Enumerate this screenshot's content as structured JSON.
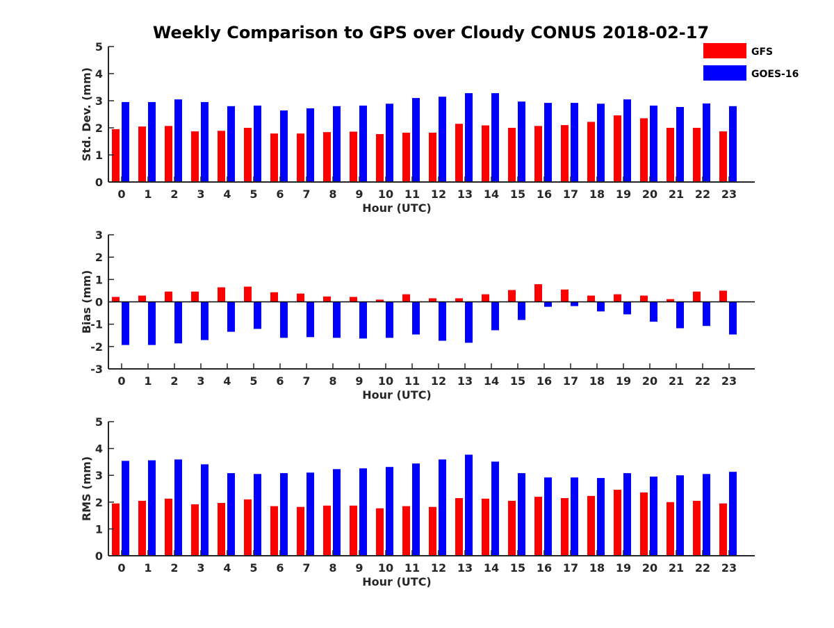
{
  "figure": {
    "title": "Weekly Comparison to GPS over Cloudy CONUS 2018-02-17"
  },
  "legend": {
    "placement": "top-right",
    "entries": [
      {
        "label": "GFS",
        "color": "#ff0000"
      },
      {
        "label": "GOES-16",
        "color": "#0000ff"
      }
    ]
  },
  "chart_data": [
    {
      "type": "bar",
      "title": "",
      "xlabel": "Hour (UTC)",
      "ylabel": "Std. Dev. (mm)",
      "ylim": [
        0,
        5
      ],
      "yticks": [
        "0",
        "1",
        "2",
        "3",
        "4",
        "5"
      ],
      "categories": [
        "0",
        "1",
        "2",
        "3",
        "4",
        "5",
        "6",
        "7",
        "8",
        "9",
        "10",
        "11",
        "12",
        "13",
        "14",
        "15",
        "16",
        "17",
        "18",
        "19",
        "20",
        "21",
        "22",
        "23"
      ],
      "series": [
        {
          "name": "GFS",
          "color": "#ff0000",
          "values": [
            1.95,
            2.05,
            2.07,
            1.87,
            1.89,
            2.0,
            1.79,
            1.79,
            1.84,
            1.86,
            1.77,
            1.82,
            1.82,
            2.15,
            2.09,
            2.0,
            2.07,
            2.1,
            2.22,
            2.46,
            2.35,
            2.0,
            2.0,
            1.87
          ]
        },
        {
          "name": "GOES-16",
          "color": "#0000ff",
          "values": [
            2.95,
            2.95,
            3.05,
            2.95,
            2.8,
            2.82,
            2.64,
            2.72,
            2.8,
            2.82,
            2.89,
            3.1,
            3.15,
            3.28,
            3.28,
            2.97,
            2.92,
            2.92,
            2.89,
            3.05,
            2.82,
            2.77,
            2.9,
            2.8
          ]
        }
      ]
    },
    {
      "type": "bar",
      "title": "",
      "xlabel": "Hour (UTC)",
      "ylabel": "Bias (mm)",
      "ylim": [
        -3,
        3
      ],
      "yticks": [
        "-3",
        "-2",
        "-1",
        "0",
        "1",
        "2",
        "3"
      ],
      "categories": [
        "0",
        "1",
        "2",
        "3",
        "4",
        "5",
        "6",
        "7",
        "8",
        "9",
        "10",
        "11",
        "12",
        "13",
        "14",
        "15",
        "16",
        "17",
        "18",
        "19",
        "20",
        "21",
        "22",
        "23"
      ],
      "series": [
        {
          "name": "GFS",
          "color": "#ff0000",
          "values": [
            0.22,
            0.28,
            0.46,
            0.46,
            0.65,
            0.68,
            0.43,
            0.37,
            0.24,
            0.22,
            0.1,
            0.34,
            0.16,
            0.16,
            0.34,
            0.53,
            0.79,
            0.55,
            0.28,
            0.34,
            0.28,
            0.12,
            0.46,
            0.5
          ]
        },
        {
          "name": "GOES-16",
          "color": "#0000ff",
          "values": [
            -1.93,
            -1.93,
            -1.86,
            -1.71,
            -1.34,
            -1.21,
            -1.61,
            -1.58,
            -1.61,
            -1.64,
            -1.61,
            -1.46,
            -1.74,
            -1.83,
            -1.27,
            -0.81,
            -0.22,
            -0.19,
            -0.43,
            -0.56,
            -0.89,
            -1.18,
            -1.08,
            -1.46
          ]
        }
      ]
    },
    {
      "type": "bar",
      "title": "",
      "xlabel": "Hour (UTC)",
      "ylabel": "RMS (mm)",
      "ylim": [
        0,
        5
      ],
      "yticks": [
        "0",
        "1",
        "2",
        "3",
        "4",
        "5"
      ],
      "categories": [
        "0",
        "1",
        "2",
        "3",
        "4",
        "5",
        "6",
        "7",
        "8",
        "9",
        "10",
        "11",
        "12",
        "13",
        "14",
        "15",
        "16",
        "17",
        "18",
        "19",
        "20",
        "21",
        "22",
        "23"
      ],
      "series": [
        {
          "name": "GFS",
          "color": "#ff0000",
          "values": [
            1.95,
            2.05,
            2.13,
            1.92,
            1.97,
            2.1,
            1.85,
            1.82,
            1.87,
            1.87,
            1.77,
            1.85,
            1.82,
            2.15,
            2.13,
            2.05,
            2.2,
            2.15,
            2.23,
            2.46,
            2.36,
            2.0,
            2.05,
            1.95
          ]
        },
        {
          "name": "GOES-16",
          "color": "#0000ff",
          "values": [
            3.54,
            3.56,
            3.59,
            3.41,
            3.08,
            3.05,
            3.08,
            3.1,
            3.23,
            3.26,
            3.31,
            3.44,
            3.59,
            3.77,
            3.51,
            3.08,
            2.92,
            2.92,
            2.9,
            3.08,
            2.95,
            3.0,
            3.05,
            3.13
          ]
        }
      ]
    }
  ]
}
